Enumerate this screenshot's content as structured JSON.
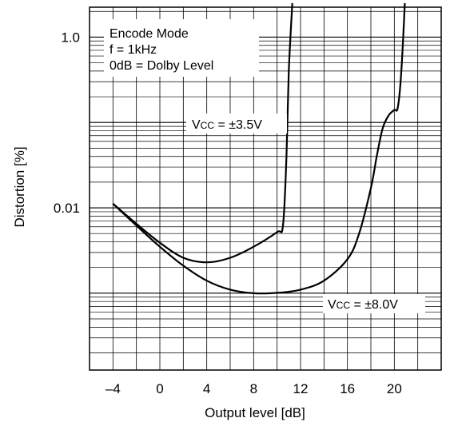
{
  "chart_data": {
    "type": "line",
    "xlabel": "Output level [dB]",
    "ylabel": "Distortion [%]",
    "x_ticks": [
      "–4",
      "0",
      "4",
      "8",
      "12",
      "16",
      "20"
    ],
    "y_ticks": [
      "1.0",
      "0.01"
    ],
    "xlim": [
      -6,
      24
    ],
    "ylim_log10": [
      -3.9,
      0.35
    ],
    "y_scale": "log",
    "grid": true,
    "annotation": [
      "Encode Mode",
      "f = 1kHz",
      "0dB = Dolby Level"
    ],
    "series": [
      {
        "name": "Vcc = ±3.5V",
        "label_prefix": "V",
        "label_subscript": "CC",
        "label_suffix": " = ±3.5V",
        "x": [
          -4,
          -2,
          0,
          2,
          4,
          6,
          8,
          10,
          10.5,
          10.8,
          11.0,
          11.3
        ],
        "y": [
          0.0112,
          0.0065,
          0.0039,
          0.0026,
          0.0023,
          0.0026,
          0.0035,
          0.0052,
          0.0062,
          0.04,
          0.4,
          2.5
        ]
      },
      {
        "name": "Vcc = ±8.0V",
        "label_prefix": "V",
        "label_subscript": "CC",
        "label_suffix": " = ±8.0V",
        "x": [
          -4,
          -2,
          0,
          2,
          4,
          6,
          8,
          10,
          12,
          14,
          16,
          17,
          18,
          18.5,
          19,
          19.5,
          20,
          20.3,
          20.6,
          20.9
        ],
        "y": [
          0.0112,
          0.0062,
          0.0035,
          0.0021,
          0.0014,
          0.0011,
          0.001,
          0.00101,
          0.0011,
          0.0014,
          0.0025,
          0.005,
          0.017,
          0.04,
          0.085,
          0.12,
          0.14,
          0.15,
          0.4,
          2.5
        ]
      }
    ]
  }
}
